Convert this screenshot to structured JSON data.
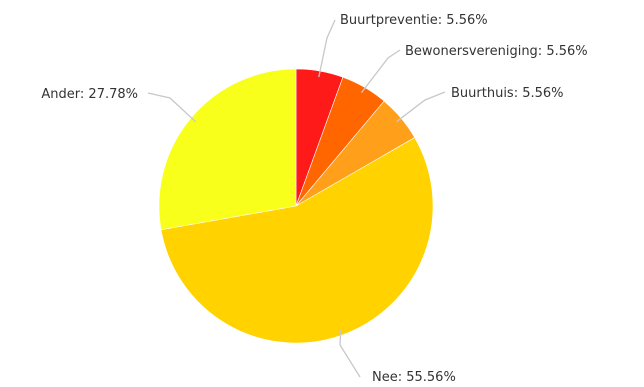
{
  "chart_data": {
    "type": "pie",
    "title": "",
    "slices": [
      {
        "label": "Buurtpreventie",
        "value": 5.56,
        "color": "#ff1a1a",
        "text": "Buurtpreventie: 5.56%"
      },
      {
        "label": "Bewonersvereniging",
        "value": 5.56,
        "color": "#ff6600",
        "text": "Bewonersvereniging: 5.56%"
      },
      {
        "label": "Buurthuis",
        "value": 5.56,
        "color": "#ff9f1a",
        "text": "Buurthuis: 5.56%"
      },
      {
        "label": "Nee",
        "value": 55.56,
        "color": "#ffd200",
        "text": "Nee: 55.56%"
      },
      {
        "label": "Ander",
        "value": 27.78,
        "color": "#f7ff1a",
        "text": "Ander: 27.78%"
      }
    ],
    "start_angle": "12 o'clock",
    "direction": "clockwise",
    "legend": "none"
  }
}
